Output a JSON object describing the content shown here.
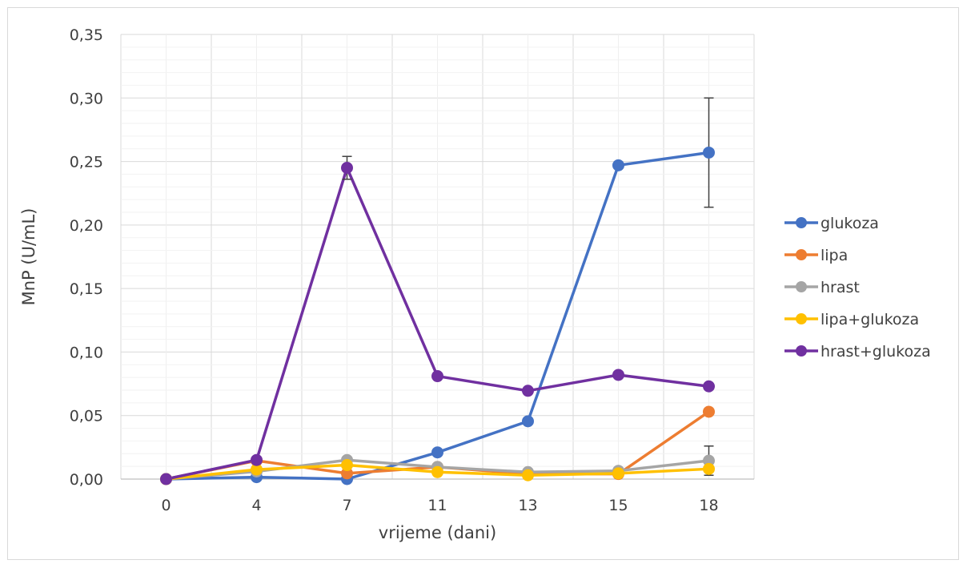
{
  "chart_data": {
    "type": "line",
    "title": "",
    "xlabel": "vrijeme (dani)",
    "ylabel": "MnP (U/mL)",
    "categories": [
      "0",
      "4",
      "7",
      "11",
      "13",
      "15",
      "18"
    ],
    "ylim": [
      0,
      0.35
    ],
    "ytick_values": [
      0,
      0.05,
      0.1,
      0.15,
      0.2,
      0.25,
      0.3,
      0.35
    ],
    "ytick_labels": [
      "0,00",
      "0,05",
      "0,10",
      "0,15",
      "0,20",
      "0,25",
      "0,30",
      "0,35"
    ],
    "grid": true,
    "legend_position": "right",
    "series": [
      {
        "name": "glukoza",
        "color": "#4472C4",
        "values": [
          0,
          0.0015,
          0,
          0.021,
          0.0455,
          0.247,
          0.257
        ],
        "errors": [
          null,
          null,
          null,
          null,
          null,
          null,
          0.043
        ]
      },
      {
        "name": "lipa",
        "color": "#ED7D31",
        "values": [
          0,
          0.0145,
          0.0045,
          0.0095,
          0.004,
          0.004,
          0.053
        ],
        "errors": [
          null,
          null,
          null,
          null,
          null,
          null,
          null
        ]
      },
      {
        "name": "hrast",
        "color": "#A5A5A5",
        "values": [
          0,
          0.006,
          0.015,
          0.0095,
          0.0055,
          0.0065,
          0.0145
        ],
        "errors": [
          null,
          null,
          null,
          null,
          null,
          null,
          0.0115
        ]
      },
      {
        "name": "lipa+glukoza",
        "color": "#FFC000",
        "values": [
          0,
          0.0075,
          0.011,
          0.0055,
          0.003,
          0.0045,
          0.008
        ],
        "errors": [
          null,
          null,
          null,
          null,
          null,
          null,
          null
        ]
      },
      {
        "name": "hrast+glukoza",
        "color": "#7030A0",
        "values": [
          0,
          0.015,
          0.245,
          0.081,
          0.0695,
          0.082,
          0.073
        ],
        "errors": [
          null,
          null,
          0.009,
          null,
          0.002,
          null,
          null
        ]
      }
    ]
  }
}
